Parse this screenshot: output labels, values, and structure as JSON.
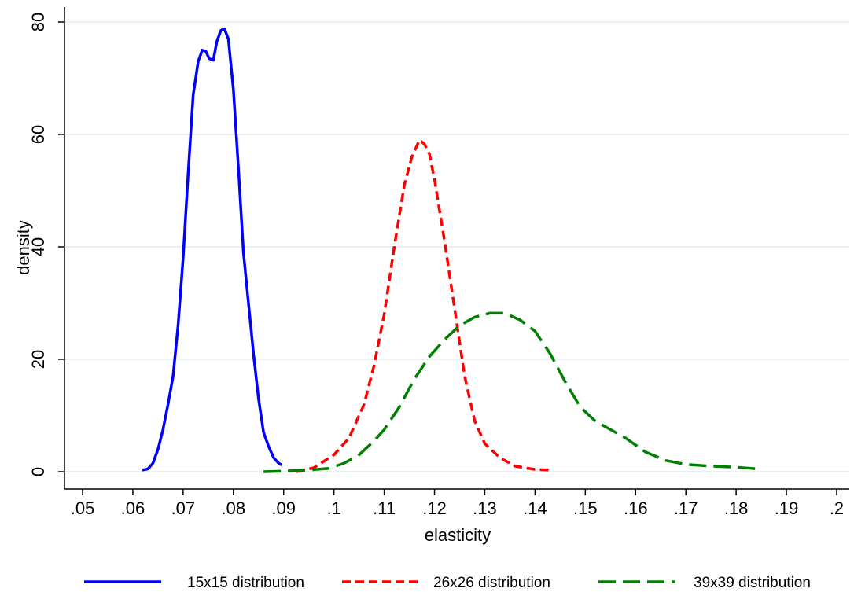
{
  "chart_data": {
    "type": "line",
    "title": "",
    "xlabel": "elasticity",
    "ylabel": "density",
    "xlim": [
      0.05,
      0.2
    ],
    "ylim": [
      0,
      80
    ],
    "x_ticks": [
      0.05,
      0.06,
      0.07,
      0.08,
      0.09,
      0.1,
      0.11,
      0.12,
      0.13,
      0.14,
      0.15,
      0.16,
      0.17,
      0.18,
      0.19,
      0.2
    ],
    "x_tick_labels": [
      ".05",
      ".06",
      ".07",
      ".08",
      ".09",
      ".1",
      ".11",
      ".12",
      ".13",
      ".14",
      ".15",
      ".16",
      ".17",
      ".18",
      ".19",
      ".2"
    ],
    "y_ticks": [
      0,
      20,
      40,
      60,
      80
    ],
    "y_tick_labels": [
      "0",
      "20",
      "40",
      "60",
      "80"
    ],
    "grid": "horizontal",
    "legend_position": "bottom",
    "series": [
      {
        "name": "15x15 distribution",
        "color": "#0000ff",
        "dash": "solid",
        "points": [
          [
            0.0619,
            0.3
          ],
          [
            0.063,
            0.5
          ],
          [
            0.064,
            1.5
          ],
          [
            0.065,
            4.0
          ],
          [
            0.066,
            7.5
          ],
          [
            0.067,
            12.0
          ],
          [
            0.068,
            17.0
          ],
          [
            0.069,
            26.0
          ],
          [
            0.07,
            38.0
          ],
          [
            0.071,
            53.0
          ],
          [
            0.072,
            67.0
          ],
          [
            0.073,
            73.0
          ],
          [
            0.0738,
            75.0
          ],
          [
            0.0745,
            74.8
          ],
          [
            0.0752,
            73.5
          ],
          [
            0.076,
            73.2
          ],
          [
            0.0767,
            76.5
          ],
          [
            0.0775,
            78.5
          ],
          [
            0.0782,
            78.8
          ],
          [
            0.079,
            77.0
          ],
          [
            0.08,
            68.0
          ],
          [
            0.081,
            54.0
          ],
          [
            0.082,
            39.0
          ],
          [
            0.083,
            30.0
          ],
          [
            0.084,
            21.0
          ],
          [
            0.085,
            13.0
          ],
          [
            0.086,
            7.0
          ],
          [
            0.087,
            4.5
          ],
          [
            0.088,
            2.5
          ],
          [
            0.089,
            1.5
          ],
          [
            0.0896,
            1.2
          ]
        ]
      },
      {
        "name": "26x26 distribution",
        "color": "#ff0000",
        "dash": "short-dash",
        "points": [
          [
            0.0925,
            0.0
          ],
          [
            0.096,
            0.7
          ],
          [
            0.1,
            3.0
          ],
          [
            0.103,
            6.0
          ],
          [
            0.106,
            12.0
          ],
          [
            0.108,
            19.0
          ],
          [
            0.11,
            28.0
          ],
          [
            0.112,
            40.0
          ],
          [
            0.114,
            51.0
          ],
          [
            0.1155,
            56.0
          ],
          [
            0.117,
            59.0
          ],
          [
            0.118,
            58.3
          ],
          [
            0.119,
            56.5
          ],
          [
            0.12,
            52.0
          ],
          [
            0.122,
            41.0
          ],
          [
            0.124,
            29.0
          ],
          [
            0.126,
            17.0
          ],
          [
            0.128,
            9.0
          ],
          [
            0.13,
            5.0
          ],
          [
            0.133,
            2.5
          ],
          [
            0.136,
            1.0
          ],
          [
            0.14,
            0.4
          ],
          [
            0.1435,
            0.3
          ]
        ]
      },
      {
        "name": "39x39 distribution",
        "color": "#008000",
        "dash": "long-dash",
        "points": [
          [
            0.086,
            0.0
          ],
          [
            0.09,
            0.1
          ],
          [
            0.095,
            0.3
          ],
          [
            0.099,
            0.6
          ],
          [
            0.102,
            1.5
          ],
          [
            0.105,
            3.0
          ],
          [
            0.108,
            5.5
          ],
          [
            0.11,
            7.5
          ],
          [
            0.113,
            11.5
          ],
          [
            0.116,
            16.5
          ],
          [
            0.119,
            20.5
          ],
          [
            0.122,
            23.5
          ],
          [
            0.125,
            26.0
          ],
          [
            0.128,
            27.5
          ],
          [
            0.131,
            28.2
          ],
          [
            0.134,
            28.2
          ],
          [
            0.137,
            27.0
          ],
          [
            0.14,
            25.0
          ],
          [
            0.143,
            21.0
          ],
          [
            0.146,
            16.0
          ],
          [
            0.149,
            11.5
          ],
          [
            0.152,
            9.0
          ],
          [
            0.155,
            7.5
          ],
          [
            0.158,
            6.0
          ],
          [
            0.162,
            3.5
          ],
          [
            0.166,
            2.0
          ],
          [
            0.17,
            1.3
          ],
          [
            0.175,
            1.0
          ],
          [
            0.18,
            0.8
          ],
          [
            0.1845,
            0.5
          ]
        ]
      }
    ]
  }
}
